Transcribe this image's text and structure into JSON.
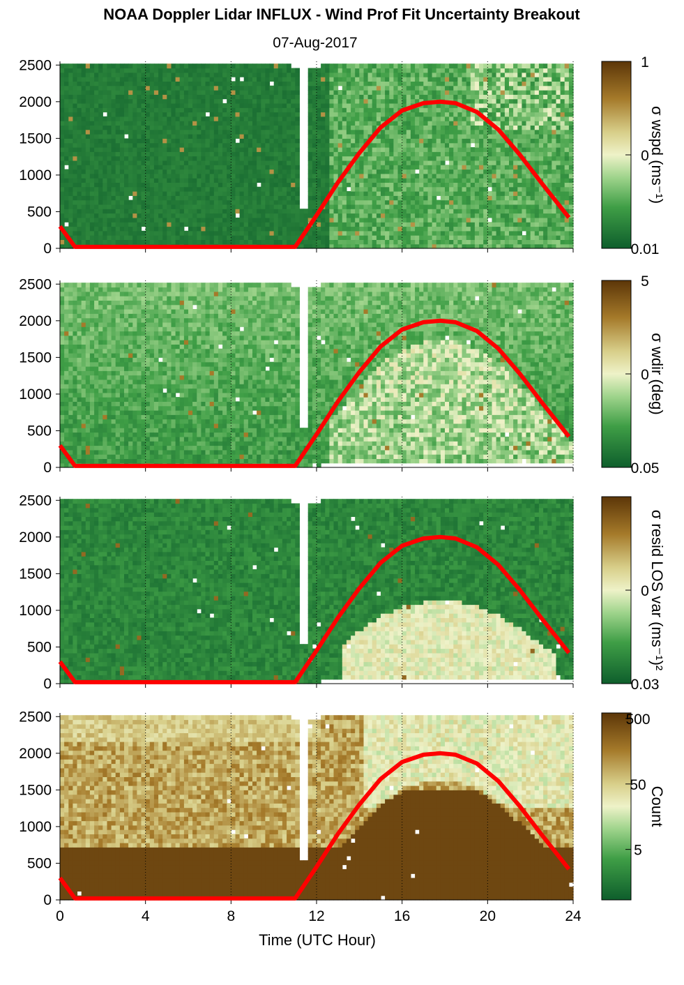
{
  "title": "NOAA Doppler Lidar INFLUX - Wind Prof Fit Uncertainty Breakout",
  "subtitle": "07-Aug-2017",
  "chart_data": {
    "type": "heatmap",
    "xlabel": "Time (UTC Hour)",
    "xlim": [
      0,
      24
    ],
    "xticks": [
      "0",
      "4",
      "8",
      "12",
      "16",
      "20",
      "24"
    ],
    "ylim": [
      0,
      2550
    ],
    "yticks": [
      "0",
      "500",
      "1000",
      "1500",
      "2000",
      "2500"
    ],
    "overlay": {
      "color": "#ff0000",
      "description": "boundary layer height line",
      "x": [
        0,
        0.7,
        11,
        12,
        13,
        14,
        15,
        16,
        17,
        17.8,
        18.5,
        19.5,
        20.5,
        21.5,
        22.5,
        23.8
      ],
      "y": [
        300,
        20,
        20,
        450,
        900,
        1300,
        1650,
        1880,
        1980,
        2000,
        1980,
        1860,
        1620,
        1280,
        900,
        420
      ]
    },
    "panels": [
      {
        "id": "wspd",
        "colorbar_label": "σ wspd (ms⁻¹)",
        "colorbar_ticks": [
          "1",
          "0",
          "0.01"
        ],
        "colorscale": "log",
        "range": [
          0.01,
          1
        ]
      },
      {
        "id": "wdir",
        "colorbar_label": "σ wdir (deg)",
        "colorbar_ticks": [
          "5",
          "0",
          "0.05"
        ],
        "colorscale": "log",
        "range": [
          0.05,
          5
        ]
      },
      {
        "id": "resid",
        "colorbar_label": "σ resid LOS var (ms⁻¹)²",
        "colorbar_ticks": [
          "0",
          "0.03"
        ],
        "colorscale": "log",
        "range": [
          0.03,
          3
        ]
      },
      {
        "id": "count",
        "colorbar_label": "Count",
        "colorbar_ticks": [
          "500",
          "50",
          "5"
        ],
        "colorscale": "log",
        "range": [
          1,
          500
        ]
      }
    ]
  },
  "colors": {
    "low": "#0e5e2c",
    "mid": "#eef2c8",
    "high": "#5c3608",
    "line": "#ff0000"
  }
}
